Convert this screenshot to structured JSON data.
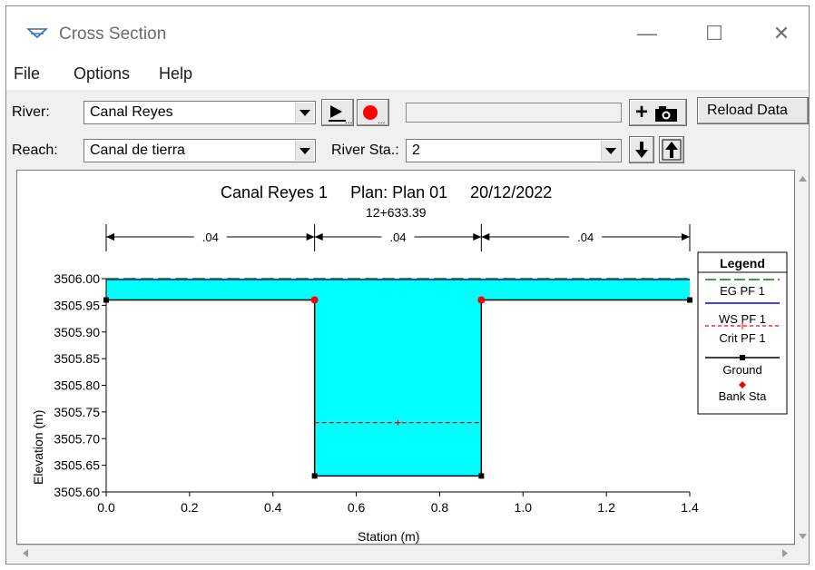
{
  "window": {
    "title": "Cross Section",
    "minimize": "—",
    "maximize": "☐",
    "close": "✕"
  },
  "menu": [
    "File",
    "Options",
    "Help"
  ],
  "toolbar": {
    "river_label": "River:",
    "river_value": "Canal Reyes",
    "reach_label": "Reach:",
    "reach_value": "Canal de tierra",
    "river_sta_label": "River Sta.:",
    "river_sta_value": "2",
    "plus_label": "+",
    "reload_label": "Reload Data",
    "ellipsis": "..."
  },
  "icons": {
    "title": "water-surface-icon",
    "play": "play-icon",
    "record": "record-icon",
    "camera": "camera-icon",
    "down": "arrow-down-icon",
    "up": "arrow-up-icon"
  },
  "colors": {
    "water": "#00ffff",
    "eg": "#008000",
    "ws": "#0000ff",
    "crit": "#ff0000",
    "ground": "#000000",
    "bank": "#ff0000"
  },
  "chart_data": {
    "type": "area",
    "title": "Canal Reyes 1     Plan: Plan 01     20/12/2022",
    "subtitle": "12+633.39",
    "xlabel": "Station (m)",
    "ylabel": "Elevation (m)",
    "xlim": [
      0.0,
      1.4
    ],
    "ylim": [
      3505.6,
      3506.0
    ],
    "xticks": [
      "0.0",
      "0.2",
      "0.4",
      "0.6",
      "0.8",
      "1.0",
      "1.2",
      "1.4"
    ],
    "yticks": [
      "3506.00",
      "3505.95",
      "3505.90",
      "3505.85",
      "3505.80",
      "3505.75",
      "3505.70",
      "3505.65",
      "3505.60"
    ],
    "ground": {
      "x": [
        0.0,
        0.5,
        0.5,
        0.9,
        0.9,
        1.4
      ],
      "y": [
        3505.96,
        3505.96,
        3505.63,
        3505.63,
        3505.96,
        3505.96
      ]
    },
    "bank_stations": {
      "x": [
        0.5,
        0.9
      ],
      "y": [
        3505.96,
        3505.96
      ]
    },
    "ws_pf1": 3506.0,
    "eg_pf1": 3506.0,
    "crit_pf1": {
      "x": [
        0.5,
        0.9
      ],
      "y": 3505.73,
      "marker_x": 0.7
    },
    "mannings": [
      {
        "label": ".04",
        "from": 0.0,
        "to": 0.5
      },
      {
        "label": ".04",
        "from": 0.5,
        "to": 0.9
      },
      {
        "label": ".04",
        "from": 0.9,
        "to": 1.4
      }
    ],
    "legend": {
      "title": "Legend",
      "placement": "right",
      "entries": [
        "EG PF 1",
        "WS PF 1",
        "Crit PF 1",
        "Ground",
        "Bank Sta"
      ]
    }
  }
}
